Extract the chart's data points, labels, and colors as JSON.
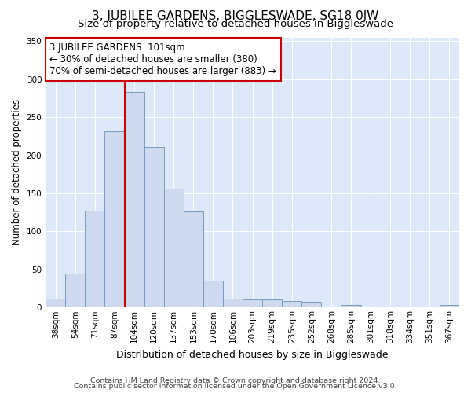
{
  "title": "3, JUBILEE GARDENS, BIGGLESWADE, SG18 0JW",
  "subtitle": "Size of property relative to detached houses in Biggleswade",
  "xlabel": "Distribution of detached houses by size in Biggleswade",
  "ylabel": "Number of detached properties",
  "footer1": "Contains HM Land Registry data © Crown copyright and database right 2024.",
  "footer2": "Contains public sector information licensed under the Open Government Licence v3.0.",
  "categories": [
    "38sqm",
    "54sqm",
    "71sqm",
    "87sqm",
    "104sqm",
    "120sqm",
    "137sqm",
    "153sqm",
    "170sqm",
    "186sqm",
    "203sqm",
    "219sqm",
    "235sqm",
    "252sqm",
    "268sqm",
    "285sqm",
    "301sqm",
    "318sqm",
    "334sqm",
    "351sqm",
    "367sqm"
  ],
  "values": [
    12,
    45,
    127,
    232,
    283,
    211,
    156,
    126,
    35,
    12,
    11,
    11,
    9,
    7,
    0,
    3,
    0,
    0,
    0,
    0,
    3
  ],
  "bar_color": "#ccd9ee",
  "bar_edge_color": "#7799bb",
  "plot_bg_color": "#dde8f8",
  "fig_bg_color": "#ffffff",
  "grid_color": "#ffffff",
  "vline_color": "#cc0000",
  "vline_x_index": 4,
  "annotation_text": "3 JUBILEE GARDENS: 101sqm\n← 30% of detached houses are smaller (380)\n70% of semi-detached houses are larger (883) →",
  "annotation_box_color": "#cc0000",
  "ylim": [
    0,
    355
  ],
  "yticks": [
    0,
    50,
    100,
    150,
    200,
    250,
    300,
    350
  ],
  "title_fontsize": 11,
  "subtitle_fontsize": 9.5,
  "annotation_fontsize": 8.5,
  "tick_fontsize": 7.5,
  "ylabel_fontsize": 8.5,
  "xlabel_fontsize": 9,
  "footer_fontsize": 6.8
}
